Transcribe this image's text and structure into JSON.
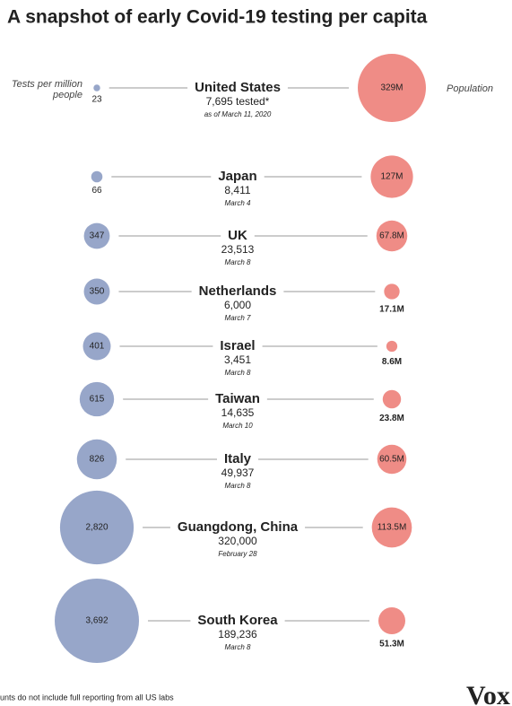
{
  "chart_data": {
    "type": "bubble",
    "title": "A snapshot of early Covid-19 testing per capita",
    "categories": [
      "United States",
      "Japan",
      "UK",
      "Netherlands",
      "Israel",
      "Taiwan",
      "Italy",
      "Guangdong, China",
      "South Korea"
    ],
    "dates": [
      "as of March 11, 2020",
      "March 4",
      "March 8",
      "March 7",
      "March 8",
      "March 10",
      "March 8",
      "February 28",
      "March 8"
    ],
    "tests": {
      "values": [
        7695,
        8411,
        23513,
        6000,
        3451,
        14635,
        49937,
        320000,
        189236
      ],
      "value_labels": [
        "7,695 tested*",
        "8,411",
        "23,513",
        "6,000",
        "3,451",
        "14,635",
        "49,937",
        "320,000",
        "189,236"
      ]
    },
    "series": [
      {
        "name": "Tests per million people",
        "color": "#97a6c9",
        "values": [
          23,
          66,
          347,
          350,
          401,
          615,
          826,
          2820,
          3692
        ],
        "value_labels": [
          "23",
          "66",
          "347",
          "350",
          "401",
          "615",
          "826",
          "2,820",
          "3,692"
        ]
      },
      {
        "name": "Population",
        "color": "#ef8c86",
        "values": [
          329,
          127,
          67.8,
          17.1,
          8.6,
          23.8,
          60.5,
          113.5,
          51.3
        ],
        "value_labels": [
          "329M",
          "127M",
          "67.8M",
          "17.1M",
          "8.6M",
          "23.8M",
          "60.5M",
          "113.5M",
          "51.3M"
        ]
      }
    ],
    "footnote": "unts do not include full reporting from all US labs",
    "logo": "Vox"
  }
}
